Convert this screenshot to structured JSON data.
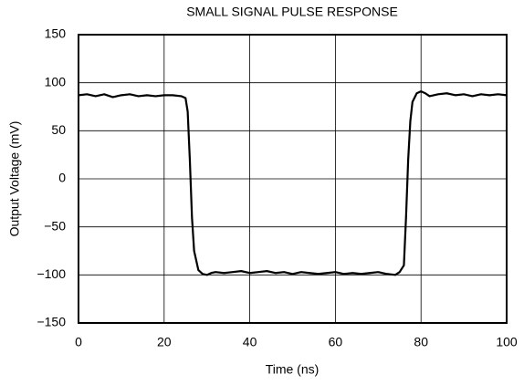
{
  "chart_data": {
    "type": "line",
    "title": "SMALL SIGNAL PULSE RESPONSE",
    "x_label": "Time (ns)",
    "y_label": "Output Voltage (mV)",
    "x": [
      0,
      2,
      4,
      6,
      8,
      10,
      12,
      14,
      16,
      18,
      20,
      22,
      24,
      25,
      25.5,
      26,
      26.5,
      27,
      28,
      29,
      30,
      31,
      32,
      34,
      36,
      38,
      40,
      42,
      44,
      46,
      48,
      50,
      52,
      54,
      56,
      58,
      60,
      62,
      64,
      66,
      68,
      70,
      72,
      74,
      75,
      76,
      76.5,
      77,
      77.5,
      78,
      79,
      80,
      81,
      82,
      84,
      86,
      88,
      90,
      92,
      94,
      96,
      98,
      100
    ],
    "series": [
      {
        "color": "#000000",
        "values": [
          87,
          88,
          86,
          88,
          85,
          87,
          88,
          86,
          87,
          86,
          87,
          87,
          86,
          84,
          70,
          20,
          -40,
          -75,
          -95,
          -99,
          -100,
          -98,
          -97,
          -98,
          -97,
          -96,
          -98,
          -97,
          -96,
          -98,
          -97,
          -99,
          -97,
          -98,
          -99,
          -98,
          -97,
          -99,
          -98,
          -99,
          -98,
          -97,
          -99,
          -100,
          -97,
          -90,
          -40,
          20,
          60,
          80,
          89,
          91,
          89,
          86,
          88,
          89,
          87,
          88,
          86,
          88,
          87,
          88,
          87
        ]
      }
    ],
    "xlim": [
      0,
      100
    ],
    "xticks": [
      0,
      20,
      40,
      60,
      80,
      100
    ],
    "ylim": [
      -150,
      150
    ],
    "yticks": [
      {
        "value": -150,
        "label": "−150"
      },
      {
        "value": -100,
        "label": "−100"
      },
      {
        "value": -50,
        "label": "−50"
      },
      0,
      50,
      100,
      150
    ],
    "grid": true
  }
}
